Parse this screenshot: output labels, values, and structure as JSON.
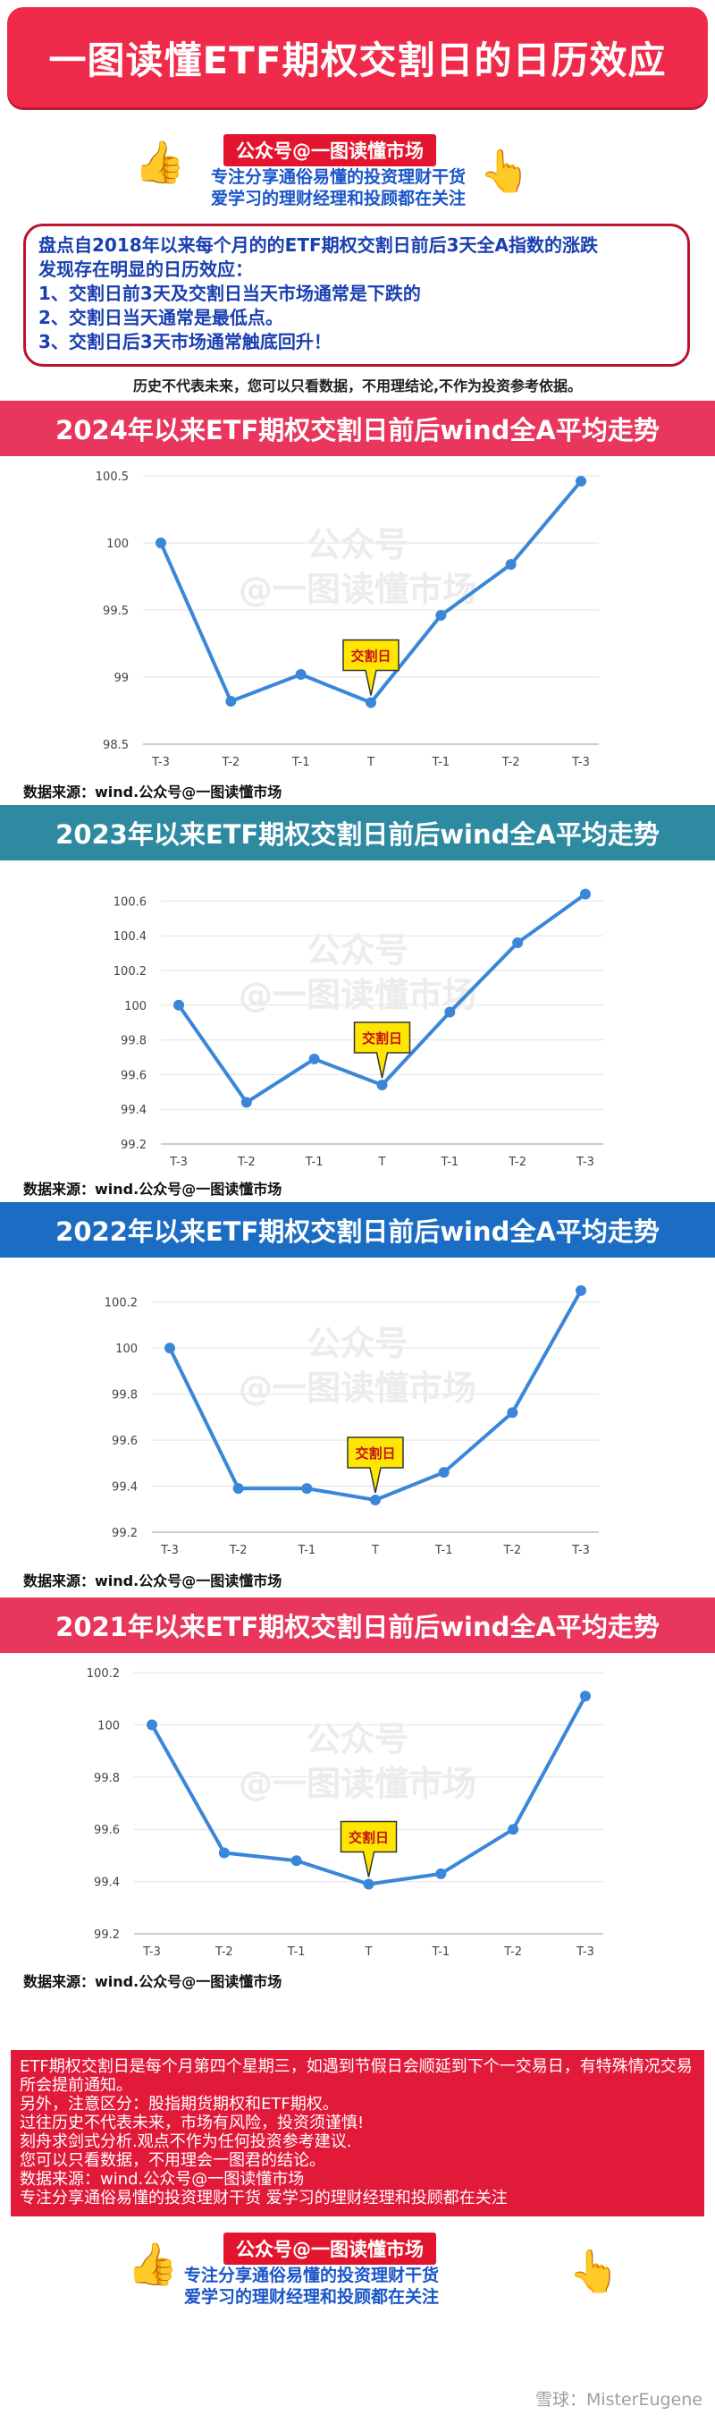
{
  "header": {
    "title": "一图读懂ETF期权交割日的日历效应"
  },
  "brand": {
    "name": "公众号@一图读懂市场",
    "tagline1": "专注分享通俗易懂的投资理财干货",
    "tagline2": "爱学习的理财经理和投顾都在关注"
  },
  "summary": {
    "line1": "盘点自2018年以来每个月的的ETF期权交割日前后3天全A指数的涨跌",
    "line2": "发现存在明显的日历效应：",
    "line3": "1、交割日前3天及交割日当天市场通常是下跌的",
    "line4": "2、交割日当天通常是最低点。",
    "line5": "3、交割日后3天市场通常触底回升！"
  },
  "disclaimer_top": "历史不代表未来，您可以只看数据，不用理结论,不作为投资参考依据。",
  "watermark": {
    "line1": "公众号",
    "line2": "@一图读懂市场"
  },
  "callout_label": "交割日",
  "colors": {
    "line": "#3a87d9",
    "grid": "#e2e2e2",
    "callout": "#ffe600"
  },
  "chart_data": [
    {
      "type": "line",
      "title": "2024年以来ETF期权交割日前后wind全A平均走势",
      "banner_color": "#e8365c",
      "categories": [
        "T-3",
        "T-2",
        "T-1",
        "T",
        "T-1",
        "T-2",
        "T-3"
      ],
      "values": [
        100.0,
        98.82,
        99.02,
        98.81,
        99.46,
        99.84,
        100.46
      ],
      "yticks": [
        98.5,
        99,
        99.5,
        100,
        100.5
      ],
      "ytick_labels": [
        "98.5",
        "99",
        "99.5",
        "100",
        "100.5"
      ],
      "ylim": [
        98.5,
        100.5
      ],
      "source": "数据来源：wind.公众号@一图读懂市场"
    },
    {
      "type": "line",
      "title": "2023年以来ETF期权交割日前后wind全A平均走势",
      "banner_color": "#2e8aa0",
      "categories": [
        "T-3",
        "T-2",
        "T-1",
        "T",
        "T-1",
        "T-2",
        "T-3"
      ],
      "values": [
        100.0,
        99.44,
        99.69,
        99.54,
        99.96,
        100.36,
        100.64
      ],
      "yticks": [
        99.2,
        99.4,
        99.6,
        99.8,
        100,
        100.2,
        100.4,
        100.6
      ],
      "ytick_labels": [
        "99.2",
        "99.4",
        "99.6",
        "99.8",
        "100",
        "100.2",
        "100.4",
        "100.6"
      ],
      "ylim": [
        99.2,
        100.7
      ],
      "source": "数据来源：wind.公众号@一图读懂市场"
    },
    {
      "type": "line",
      "title": "2022年以来ETF期权交割日前后wind全A平均走势",
      "banner_color": "#1a6dc2",
      "categories": [
        "T-3",
        "T-2",
        "T-1",
        "T",
        "T-1",
        "T-2",
        "T-3"
      ],
      "values": [
        100.0,
        99.39,
        99.39,
        99.34,
        99.46,
        99.72,
        100.25
      ],
      "yticks": [
        99.2,
        99.4,
        99.6,
        99.8,
        100,
        100.2
      ],
      "ytick_labels": [
        "99.2",
        "99.4",
        "99.6",
        "99.8",
        "100",
        "100.2"
      ],
      "ylim": [
        99.2,
        100.3
      ],
      "source": "数据来源：wind.公众号@一图读懂市场"
    },
    {
      "type": "line",
      "title": "2021年以来ETF期权交割日前后wind全A平均走势",
      "banner_color": "#e8365c",
      "categories": [
        "T-3",
        "T-2",
        "T-1",
        "T",
        "T-1",
        "T-2",
        "T-3"
      ],
      "values": [
        100.0,
        99.51,
        99.48,
        99.39,
        99.43,
        99.6,
        100.11
      ],
      "yticks": [
        99.2,
        99.4,
        99.6,
        99.8,
        100,
        100.2
      ],
      "ytick_labels": [
        "99.2",
        "99.4",
        "99.6",
        "99.8",
        "100",
        "100.2"
      ],
      "ylim": [
        99.2,
        100.2
      ],
      "source": "数据来源：wind.公众号@一图读懂市场"
    }
  ],
  "notes": {
    "line1": "ETF期权交割日是每个月第四个星期三，如遇到节假日会顺延到下个一交易日，有特殊情况交易所会提前通知。",
    "line2": "另外，注意区分：股指期货期权和ETF期权。",
    "line3": "过往历史不代表未来，市场有风险，投资须谨慎!",
    "line4": "刻舟求剑式分析.观点不作为任何投资参考建议.",
    "line5": "您可以只看数据，不用理会一图君的结论。",
    "line6": "数据来源：wind.公众号@一图读懂市场",
    "line7": "专注分享通俗易懂的投资理财干货       爱学习的理财经理和投顾都在关注"
  },
  "footer": {
    "watermark": "雪球：MisterEugene"
  }
}
